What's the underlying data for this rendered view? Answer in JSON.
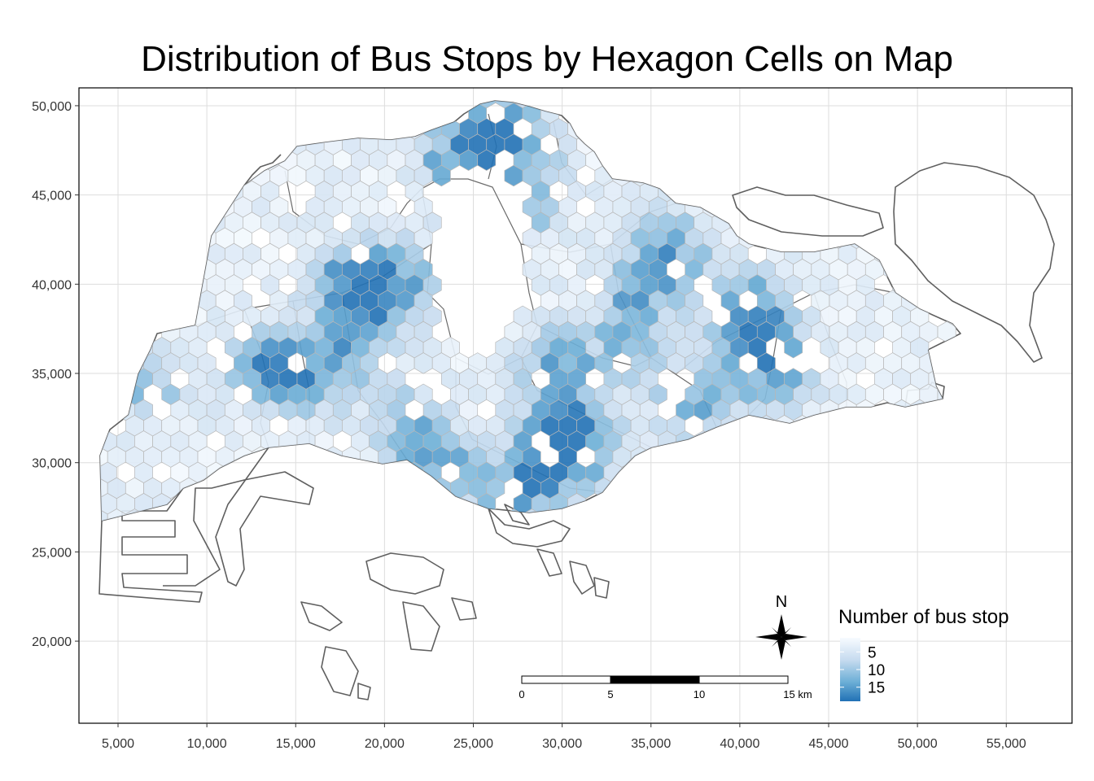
{
  "title": "Distribution of Bus Stops by Hexagon Cells on Map",
  "chart_data": {
    "type": "heatmap",
    "title": "Distribution of Bus Stops by Hexagon Cells on Map",
    "x_ticks": [
      "5,000",
      "10,000",
      "15,000",
      "20,000",
      "25,000",
      "30,000",
      "35,000",
      "40,000",
      "45,000",
      "50,000",
      "55,000"
    ],
    "x_tick_values": [
      5000,
      10000,
      15000,
      20000,
      25000,
      30000,
      35000,
      40000,
      45000,
      50000,
      55000
    ],
    "y_ticks": [
      "50,000",
      "45,000",
      "40,000",
      "35,000",
      "30,000",
      "25,000",
      "20,000"
    ],
    "y_tick_values": [
      50000,
      45000,
      40000,
      35000,
      30000,
      25000,
      20000
    ],
    "xlim": [
      2800,
      58700
    ],
    "ylim": [
      15400,
      51000
    ],
    "grid": true,
    "legend": {
      "title": "Number of bus stop",
      "labels": [
        "5",
        "10",
        "15"
      ],
      "values": [
        5,
        10,
        15
      ],
      "range": [
        1,
        19
      ],
      "colors": [
        "#f7fbff",
        "#c6dbef",
        "#6baed6",
        "#2171b5"
      ],
      "placement": "bottom-right"
    },
    "hotspots": [
      {
        "x": 18000,
        "y": 40000,
        "value": 17
      },
      {
        "x": 20500,
        "y": 40000,
        "value": 15
      },
      {
        "x": 13000,
        "y": 35500,
        "value": 14
      },
      {
        "x": 15500,
        "y": 35000,
        "value": 13
      },
      {
        "x": 29800,
        "y": 31000,
        "value": 17
      },
      {
        "x": 30800,
        "y": 31500,
        "value": 15
      },
      {
        "x": 29500,
        "y": 35500,
        "value": 13
      },
      {
        "x": 25500,
        "y": 48500,
        "value": 14
      },
      {
        "x": 27000,
        "y": 48500,
        "value": 13
      },
      {
        "x": 24000,
        "y": 46500,
        "value": 12
      },
      {
        "x": 28000,
        "y": 45000,
        "value": 12
      },
      {
        "x": 34500,
        "y": 39500,
        "value": 12
      },
      {
        "x": 36000,
        "y": 42000,
        "value": 13
      },
      {
        "x": 40500,
        "y": 39000,
        "value": 13
      },
      {
        "x": 41000,
        "y": 36500,
        "value": 12
      },
      {
        "x": 42000,
        "y": 35000,
        "value": 11
      },
      {
        "x": 23000,
        "y": 30000,
        "value": 12
      },
      {
        "x": 26500,
        "y": 28000,
        "value": 11
      },
      {
        "x": 28500,
        "y": 29000,
        "value": 11
      },
      {
        "x": 33500,
        "y": 36500,
        "value": 11
      },
      {
        "x": 37500,
        "y": 33000,
        "value": 11
      },
      {
        "x": 6500,
        "y": 34500,
        "value": 10
      },
      {
        "x": 18500,
        "y": 36500,
        "value": 10
      },
      {
        "x": 21000,
        "y": 32000,
        "value": 10
      }
    ],
    "scale_bar": {
      "labels": [
        "0",
        "5",
        "10",
        "15 km"
      ],
      "values_km": [
        0,
        5,
        10,
        15
      ]
    },
    "north_arrow": "N"
  },
  "colors": {
    "coast": "#555555",
    "boundary": "#666666",
    "grid": "#dddddd",
    "hex_stroke": "#b8b8b8"
  }
}
